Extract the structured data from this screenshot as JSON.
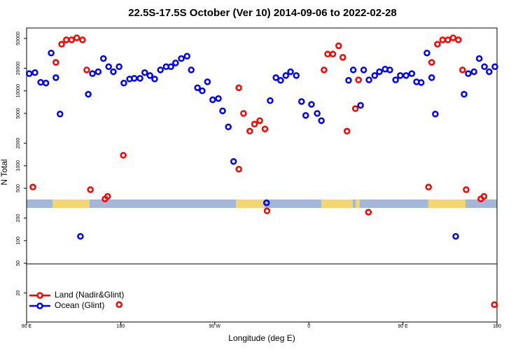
{
  "chart_data": {
    "type": "scatter",
    "title": "22.5S-17.5S October (Ver 10)   2014-09-06 to 2022-02-28",
    "x_label": "Longitude (deg E)",
    "y_label": "N Total",
    "log_y": true,
    "legend": "lower left",
    "xlim": [
      90,
      540
    ],
    "xticks": [
      {
        "value": 90,
        "label": "90 E"
      },
      {
        "value": 180,
        "label": "180"
      },
      {
        "value": 270,
        "label": "90 W"
      },
      {
        "value": 360,
        "label": "0"
      },
      {
        "value": 450,
        "label": "90 E"
      },
      {
        "value": 540,
        "label": "180"
      }
    ],
    "ylim": [
      8.2,
      69000
    ],
    "yticks": [
      20,
      50,
      100,
      200,
      500,
      1000,
      2000,
      5000,
      10000,
      20000,
      50000
    ],
    "series": [
      {
        "name": "Land (Nadir&Glint)",
        "color": "#ff0000",
        "x": [
          96,
          118,
          123.5,
          128,
          133,
          138,
          143.5,
          147.5,
          151,
          165,
          167.5,
          182.5,
          293,
          293,
          297.5,
          303.5,
          308,
          313,
          318,
          320,
          374.5,
          378,
          383,
          388.5,
          392.5,
          396.5,
          404.5,
          407.5,
          417,
          474.5,
          477.5,
          483,
          488,
          493,
          498,
          503,
          507,
          510.5,
          524.5,
          527.5,
          537.5,
          178.5
        ],
        "values": [
          520,
          24000,
          42000,
          48000,
          48000,
          51000,
          48000,
          19000,
          480,
          360,
          390,
          1380,
          900,
          11000,
          5000,
          2900,
          3600,
          4000,
          3100,
          250,
          19000,
          31000,
          31000,
          40000,
          28000,
          2900,
          5800,
          14000,
          240,
          520,
          24000,
          42000,
          48000,
          48000,
          51000,
          48000,
          19000,
          480,
          360,
          390,
          14,
          14
        ]
      },
      {
        "name": "Ocean (Glint)",
        "color": "#0000ff",
        "x": [
          92.5,
          98,
          103.5,
          108.5,
          113.5,
          118,
          122,
          141.5,
          149,
          153,
          158.5,
          163.5,
          168.5,
          173,
          178.5,
          183,
          188.5,
          193,
          198.5,
          203,
          208,
          212.5,
          218,
          223.5,
          228,
          232.5,
          238,
          243.5,
          247.5,
          253.5,
          258,
          263,
          268,
          273.5,
          277.5,
          283,
          288,
          319.5,
          323,
          328.5,
          333,
          338,
          342.5,
          348,
          353,
          357,
          362.5,
          368,
          372,
          398,
          402.5,
          409.5,
          412.5,
          417.5,
          423,
          427.5,
          433,
          437.5,
          443,
          447.5,
          453,
          458.5,
          463,
          467.5,
          473,
          477.5,
          481,
          500.5,
          508.5,
          512.5,
          518,
          523,
          528,
          532.5,
          538
        ],
        "values": [
          17000,
          17500,
          13000,
          12700,
          32000,
          15000,
          4900,
          114,
          9000,
          17000,
          18000,
          27000,
          21000,
          18000,
          21000,
          12700,
          14400,
          14700,
          14700,
          17500,
          16000,
          14400,
          19000,
          21000,
          21000,
          23600,
          27000,
          29000,
          19000,
          11000,
          10000,
          13200,
          7600,
          7900,
          5400,
          3300,
          1140,
          320,
          7400,
          15000,
          13800,
          16000,
          18000,
          16000,
          7200,
          4700,
          6600,
          5000,
          4000,
          13800,
          19000,
          6400,
          19000,
          14000,
          16000,
          18000,
          19500,
          19000,
          14000,
          16000,
          16000,
          17000,
          13200,
          12900,
          32000,
          15000,
          4900,
          114,
          9000,
          17000,
          18000,
          27000,
          21000,
          18000,
          21000
        ]
      }
    ]
  }
}
